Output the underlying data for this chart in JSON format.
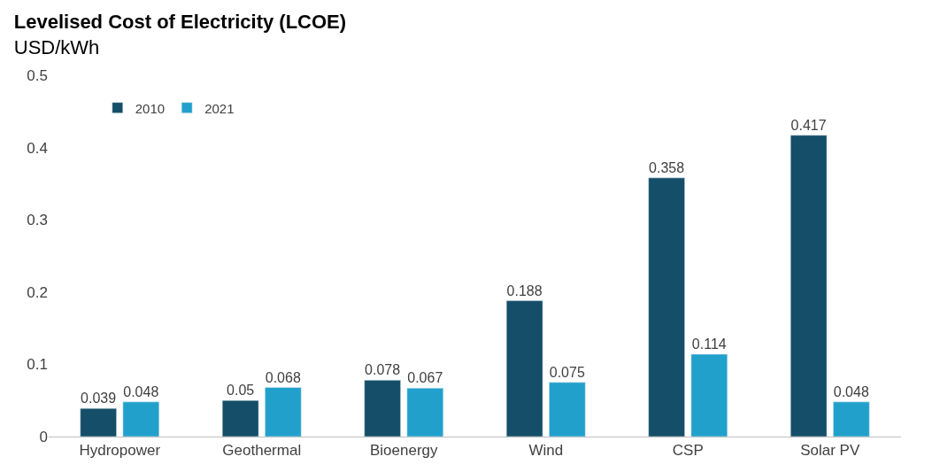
{
  "chart_data": {
    "type": "bar",
    "title": "Levelised Cost of Electricity (LCOE)",
    "subtitle": "USD/kWh",
    "categories": [
      "Hydropower",
      "Geothermal",
      "Bioenergy",
      "Wind",
      "CSP",
      "Solar PV"
    ],
    "series": [
      {
        "name": "2010",
        "color": "#154e68",
        "values": [
          0.039,
          0.05,
          0.078,
          0.188,
          0.358,
          0.417
        ]
      },
      {
        "name": "2021",
        "color": "#22a0cc",
        "values": [
          0.048,
          0.068,
          0.067,
          0.075,
          0.114,
          0.048
        ]
      }
    ],
    "ylim": [
      0,
      0.5
    ],
    "yticks": [
      0,
      0.1,
      0.2,
      0.3,
      0.4,
      0.5
    ],
    "legend": "top left",
    "data_labels": true
  }
}
